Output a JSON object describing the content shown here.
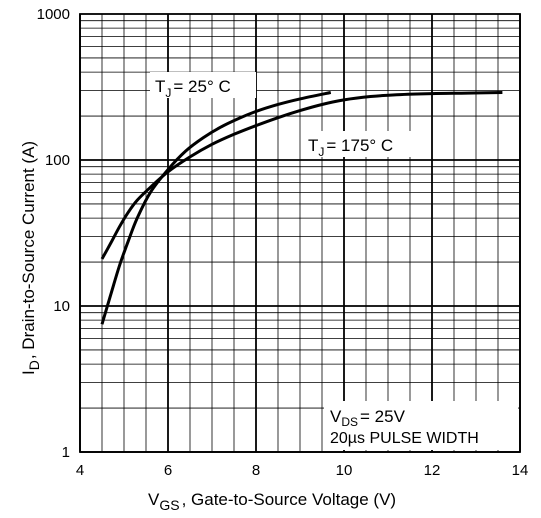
{
  "chart_data": {
    "type": "line",
    "title": "",
    "xlabel": {
      "main": "V",
      "sub": "GS",
      "rest": ", Gate-to-Source Voltage (V)"
    },
    "ylabel": {
      "main": "I",
      "sub": "D",
      "rest": ",  Drain-to-Source Current (A)"
    },
    "xlim": [
      4,
      14
    ],
    "ylim": [
      1,
      1000
    ],
    "yscale": "log",
    "grid": true,
    "x_ticks": [
      4,
      6,
      8,
      10,
      12,
      14
    ],
    "x_tick_labels": [
      "4",
      "6",
      "8",
      "10",
      "12",
      "14"
    ],
    "y_ticks": [
      1,
      10,
      100,
      1000
    ],
    "y_tick_labels": [
      "1",
      "10",
      "100",
      "1000"
    ],
    "series": [
      {
        "name": "T_J = 25° C",
        "x": [
          4.5,
          4.7,
          4.9,
          5.1,
          5.3,
          5.6,
          6.0,
          6.4,
          6.8,
          7.2,
          7.6,
          8.0,
          8.5,
          9.0,
          9.7
        ],
        "y": [
          7.5,
          12,
          19,
          28,
          40,
          60,
          86,
          115,
          142,
          168,
          192,
          215,
          240,
          262,
          290
        ]
      },
      {
        "name": "T_J = 175° C",
        "x": [
          4.5,
          4.7,
          4.9,
          5.1,
          5.3,
          5.6,
          6.0,
          6.5,
          7.0,
          7.5,
          8.0,
          8.5,
          9.0,
          9.5,
          10.0,
          10.6,
          11.2,
          12.0,
          12.8,
          13.6
        ],
        "y": [
          21,
          27,
          35,
          44,
          53,
          65,
          83,
          105,
          128,
          150,
          172,
          195,
          218,
          240,
          258,
          272,
          280,
          285,
          287,
          290
        ]
      }
    ],
    "annotations": {
      "tj25": {
        "main": "T",
        "sub": "J",
        "rest": "= 25° C"
      },
      "tj175": {
        "main": "T",
        "sub": "J",
        "rest": "= 175° C"
      },
      "vds": {
        "main": "V",
        "sub": "DS",
        "rest": "= 25V"
      },
      "pulse": "20µs PULSE WIDTH"
    }
  }
}
